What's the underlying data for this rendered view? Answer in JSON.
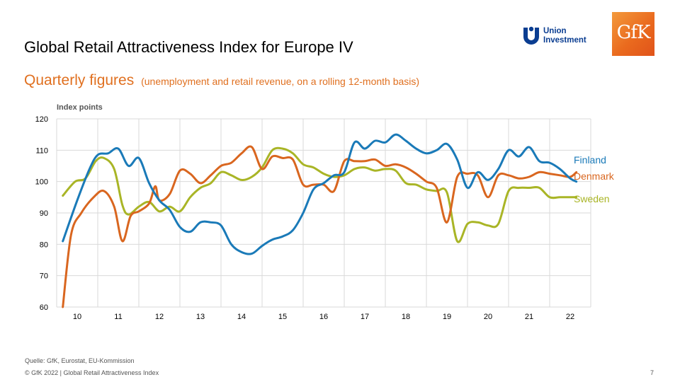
{
  "slide": {
    "title": "Global Retail Attractiveness Index for Europe IV",
    "subtitle": "Quarterly figures",
    "subtitle_note": "(unemployment  and retail revenue,  on a rolling 12-month basis)",
    "source": "Quelle: GfK, Eurostat, EU-Kommission",
    "copyright": "© GfK 2022 | Global Retail Attractiveness Index",
    "page_number": "7"
  },
  "logos": {
    "union_investment": "Union\nInvestment",
    "gfk": "GfK"
  },
  "colors": {
    "finland": "#1a7ab8",
    "denmark": "#d9661f",
    "sweden": "#a9b526",
    "grid": "#d9d9d9"
  },
  "chart_data": {
    "type": "line",
    "ylabel": "Index points",
    "ylim": [
      60,
      120
    ],
    "yticks": [
      60,
      70,
      80,
      90,
      100,
      110,
      120
    ],
    "categories": [
      "10",
      "11",
      "12",
      "13",
      "14",
      "15",
      "16",
      "17",
      "18",
      "19",
      "20",
      "21",
      "22"
    ],
    "xlim": [
      0,
      13
    ],
    "grid": true,
    "legend": "right, inline labels",
    "series": [
      {
        "name": "Finland",
        "x": [
          0.15,
          0.5,
          0.8,
          1.0,
          1.25,
          1.5,
          1.75,
          2.0,
          2.25,
          2.5,
          2.75,
          3.0,
          3.25,
          3.5,
          3.75,
          4.0,
          4.25,
          4.5,
          4.75,
          5.0,
          5.25,
          5.5,
          5.75,
          6.0,
          6.25,
          6.5,
          6.75,
          7.0,
          7.25,
          7.5,
          7.75,
          8.0,
          8.25,
          8.5,
          8.75,
          9.0,
          9.25,
          9.5,
          9.75,
          10.0,
          10.25,
          10.5,
          10.75,
          11.0,
          11.25,
          11.5,
          11.75,
          12.0,
          12.25,
          12.5,
          12.65
        ],
        "values": [
          81,
          94,
          104,
          108.5,
          109,
          110.5,
          105,
          107.5,
          99.5,
          94,
          91,
          85.5,
          84,
          87,
          87,
          86,
          80,
          77.5,
          77,
          79.5,
          81.5,
          82.5,
          84.5,
          90,
          97.5,
          99.5,
          102,
          103,
          112.5,
          110.5,
          113,
          112.5,
          115,
          113,
          110.5,
          109,
          110,
          112,
          107,
          98,
          103,
          100.5,
          104,
          110,
          108,
          111,
          106.5,
          106,
          104,
          101,
          100
        ]
      },
      {
        "name": "Denmark",
        "x": [
          0.15,
          0.35,
          0.6,
          0.9,
          1.15,
          1.4,
          1.6,
          1.8,
          2.0,
          2.25,
          2.4,
          2.5,
          2.75,
          3.0,
          3.25,
          3.5,
          3.75,
          4.0,
          4.25,
          4.5,
          4.75,
          5.0,
          5.25,
          5.5,
          5.75,
          6.0,
          6.25,
          6.5,
          6.75,
          7.0,
          7.25,
          7.5,
          7.75,
          8.0,
          8.25,
          8.5,
          8.75,
          9.0,
          9.25,
          9.5,
          9.75,
          10.0,
          10.25,
          10.5,
          10.75,
          11.0,
          11.25,
          11.5,
          11.75,
          12.0,
          12.25,
          12.5,
          12.65
        ],
        "values": [
          60,
          83,
          90,
          95,
          97,
          92,
          81,
          89,
          90.5,
          93,
          98.5,
          94,
          96,
          103.5,
          102.5,
          99.5,
          102,
          105,
          106,
          109,
          111,
          104,
          108,
          107.5,
          107,
          99,
          99,
          99,
          97,
          106.5,
          106.5,
          106.5,
          107,
          105,
          105.5,
          104.5,
          102.5,
          100,
          98,
          87,
          101.5,
          102.5,
          102,
          95,
          102,
          102,
          101,
          101.5,
          103,
          102.5,
          102,
          101.5,
          103
        ]
      },
      {
        "name": "Sweden",
        "x": [
          0.15,
          0.45,
          0.7,
          0.95,
          1.15,
          1.4,
          1.6,
          1.75,
          2.0,
          2.25,
          2.5,
          2.75,
          3.0,
          3.25,
          3.5,
          3.75,
          4.0,
          4.25,
          4.5,
          4.75,
          5.0,
          5.25,
          5.5,
          5.75,
          6.0,
          6.25,
          6.5,
          6.75,
          7.0,
          7.25,
          7.5,
          7.75,
          8.0,
          8.25,
          8.5,
          8.75,
          9.0,
          9.25,
          9.5,
          9.75,
          10.0,
          10.25,
          10.5,
          10.75,
          11.0,
          11.25,
          11.5,
          11.75,
          12.0,
          12.25,
          12.5,
          12.65
        ],
        "values": [
          95.5,
          100,
          101,
          106.5,
          107.5,
          104,
          92.5,
          89.5,
          92,
          93.5,
          90.5,
          92,
          90.5,
          95,
          98,
          99.5,
          103,
          102,
          100.5,
          101.5,
          104.5,
          110,
          110.5,
          109,
          105.5,
          104.5,
          102.5,
          101.5,
          102,
          104,
          104.5,
          103.5,
          104,
          103.5,
          99.5,
          99,
          97.5,
          97,
          96.5,
          81,
          86.5,
          87,
          86,
          86.5,
          97,
          98,
          98,
          98,
          95,
          95,
          95,
          95
        ]
      }
    ]
  }
}
